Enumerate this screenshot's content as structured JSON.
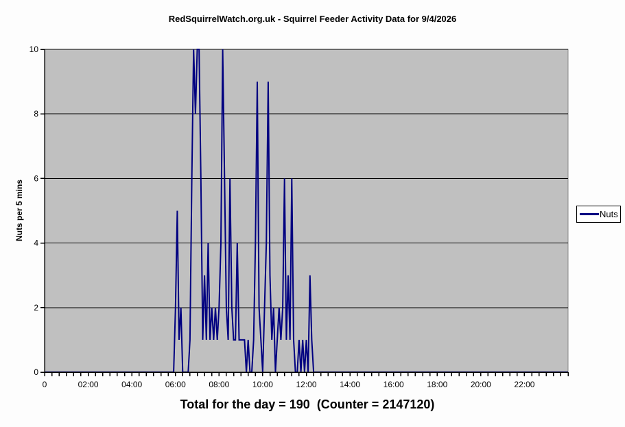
{
  "chart": {
    "title": "RedSquirrelWatch.org.uk - Squirrel Feeder Activity Data for 9/4/2026",
    "ylabel": "Nuts per 5 mins",
    "legend": {
      "label": "Nuts"
    },
    "footer": "Total for the day = 190  (Counter = 2147120)"
  },
  "chart_data": {
    "type": "line",
    "title": "RedSquirrelWatch.org.uk - Squirrel Feeder Activity Data for 9/4/2026",
    "xlabel": "",
    "ylabel": "Nuts per 5 mins",
    "ylim": [
      0,
      10
    ],
    "yticks": [
      0,
      2,
      4,
      6,
      8,
      10
    ],
    "grid": "horizontal",
    "legend_position": "right",
    "x_unit": "time-of-day",
    "xlim_minutes": [
      0,
      1440
    ],
    "interval_minutes": 5,
    "minor_tick_minutes": 20,
    "baseline_value": 0,
    "xticks": [
      {
        "minute": 0,
        "label": "0"
      },
      {
        "minute": 120,
        "label": "02:00"
      },
      {
        "minute": 240,
        "label": "04:00"
      },
      {
        "minute": 360,
        "label": "06:00"
      },
      {
        "minute": 480,
        "label": "08:00"
      },
      {
        "minute": 600,
        "label": "10:00"
      },
      {
        "minute": 720,
        "label": "12:00"
      },
      {
        "minute": 840,
        "label": "14:00"
      },
      {
        "minute": 960,
        "label": "16:00"
      },
      {
        "minute": 1080,
        "label": "18:00"
      },
      {
        "minute": 1200,
        "label": "20:00"
      },
      {
        "minute": 1320,
        "label": "22:00"
      }
    ],
    "series": [
      {
        "name": "Nuts",
        "color": "#000080",
        "segment": {
          "start_minute": 360,
          "end_minute": 735,
          "values": [
            2,
            5,
            1,
            2,
            0,
            0,
            0,
            0,
            1,
            6,
            10,
            8,
            10,
            10,
            6,
            1,
            3,
            1,
            4,
            1,
            2,
            1,
            2,
            1,
            2,
            4,
            10,
            6,
            2,
            1,
            6,
            2,
            1,
            1,
            4,
            1,
            1,
            1,
            1,
            0,
            1,
            0,
            0,
            1,
            4,
            9,
            2,
            1,
            0,
            2,
            4,
            9,
            3,
            1,
            2,
            0,
            1,
            2,
            1,
            2,
            6,
            1,
            3,
            1,
            6,
            1,
            0,
            0,
            1,
            0,
            1,
            0,
            1,
            0,
            3,
            1
          ]
        }
      }
    ],
    "total_for_day": 190,
    "counter": 2147120,
    "colors": {
      "plot_bg": "#c0c0c0",
      "plot_border": "#888888",
      "grid": "#000000",
      "axis": "#000000",
      "line": "#000080",
      "page_bg": "#fdfdfd"
    }
  }
}
